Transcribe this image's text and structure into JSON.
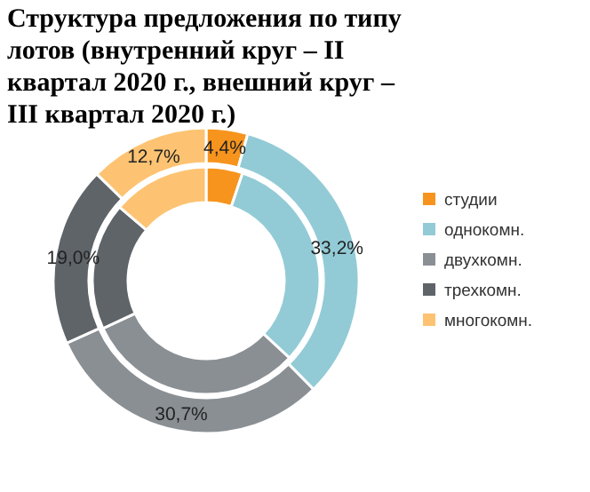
{
  "chart_data": {
    "type": "donut",
    "title": "Структура предложения  по типу лотов (внутренний круг – II квартал 2020 г., внешний круг – III квартал 2020 г.)",
    "categories": [
      "студии",
      "однокомн.",
      "двухкомн.",
      "трехкомн.",
      "многокомн."
    ],
    "colors": [
      "#f7941d",
      "#92cbd6",
      "#8a8f94",
      "#5f6469",
      "#fdc372"
    ],
    "legend": "right",
    "series": [
      {
        "values": [
          5.2,
          31.7,
          31.2,
          18.1,
          13.8
        ]
      },
      {
        "values": [
          4.4,
          33.2,
          30.7,
          19.0,
          12.7
        ],
        "value_labels": [
          "4,4%",
          "33,2%",
          "30,7%",
          "19,0%",
          "12,7%"
        ]
      }
    ]
  }
}
